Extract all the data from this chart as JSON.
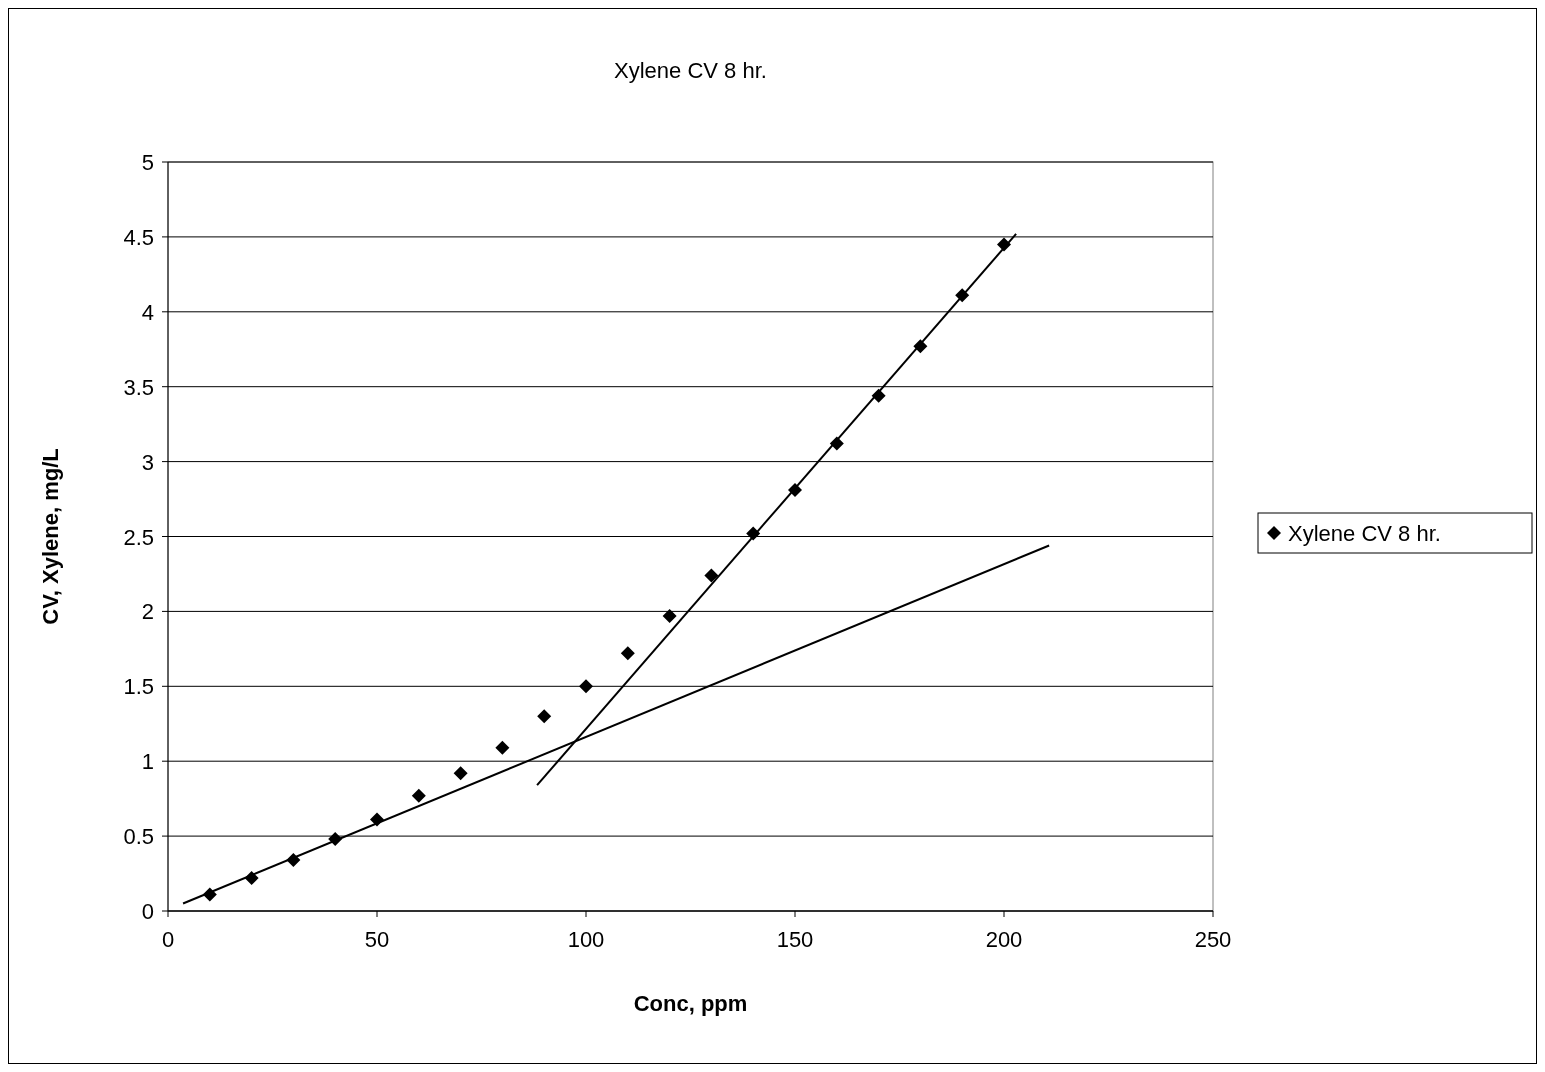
{
  "chart_data": {
    "type": "scatter",
    "title": "Xylene CV 8 hr.",
    "xlabel": "Conc, ppm",
    "ylabel": "CV, Xylene, mg/L",
    "xlim": [
      0,
      250
    ],
    "xticks": [
      0,
      50,
      100,
      150,
      200,
      250
    ],
    "ylim": [
      0,
      5
    ],
    "yticks": [
      0,
      0.5,
      1,
      1.5,
      2,
      2.5,
      3,
      3.5,
      4,
      4.5,
      5
    ],
    "grid": "y",
    "legend": "right",
    "series": [
      {
        "name": "Xylene CV 8 hr.",
        "marker": "diamond",
        "color": "#000000",
        "x": [
          10,
          20,
          30,
          40,
          50,
          60,
          70,
          80,
          90,
          100,
          110,
          120,
          130,
          140,
          150,
          160,
          170,
          180,
          190,
          200
        ],
        "values": [
          0.11,
          0.22,
          0.34,
          0.48,
          0.61,
          0.77,
          0.92,
          1.09,
          1.3,
          1.5,
          1.72,
          1.97,
          2.24,
          2.52,
          2.81,
          3.12,
          3.44,
          3.77,
          4.11,
          4.45
        ]
      },
      {
        "type": "line",
        "color": "#000000",
        "x": [
          3.6,
          210.8
        ],
        "values": [
          0.05,
          2.44
        ]
      },
      {
        "type": "line",
        "color": "#000000",
        "x": [
          88.3,
          202.9
        ],
        "values": [
          0.84,
          4.52
        ]
      }
    ]
  }
}
